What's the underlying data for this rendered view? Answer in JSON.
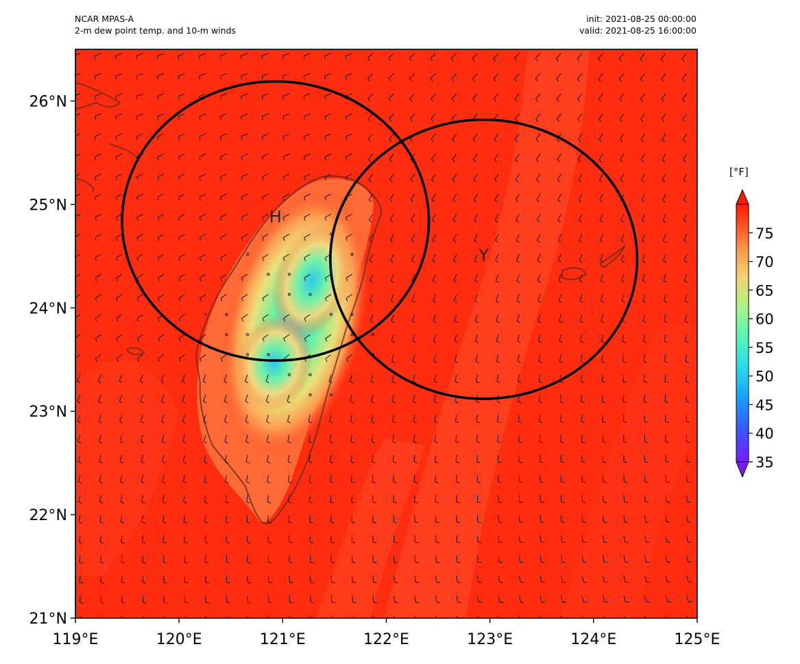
{
  "header": {
    "model": "NCAR MPAS-A",
    "field": "2-m dew point temp. and 10-m winds",
    "init": "init: 2021-08-25 00:00:00",
    "valid": "valid: 2021-08-25 16:00:00"
  },
  "map": {
    "lon_range": [
      119,
      125
    ],
    "lat_range": [
      21,
      26.5
    ],
    "x_ticks": [
      "119°E",
      "120°E",
      "121°E",
      "122°E",
      "123°E",
      "124°E",
      "125°E"
    ],
    "y_ticks": [
      "21°N",
      "22°N",
      "23°N",
      "24°N",
      "25°N",
      "26°N"
    ],
    "circles": [
      {
        "label": "H",
        "lon": 120.93,
        "lat": 24.84,
        "rx_deg": 1.48,
        "ry_deg": 1.35
      },
      {
        "label": "Y",
        "lon": 122.94,
        "lat": 24.47,
        "rx_deg": 1.48,
        "ry_deg": 1.35
      }
    ],
    "colors": {
      "background_field": "#ff2d10",
      "circle": "#000000",
      "coast": "#5a2a1a"
    }
  },
  "colorbar": {
    "units": "[°F]",
    "ticks": [
      "35",
      "40",
      "45",
      "50",
      "55",
      "60",
      "65",
      "70",
      "75"
    ],
    "range": [
      35,
      80
    ]
  }
}
